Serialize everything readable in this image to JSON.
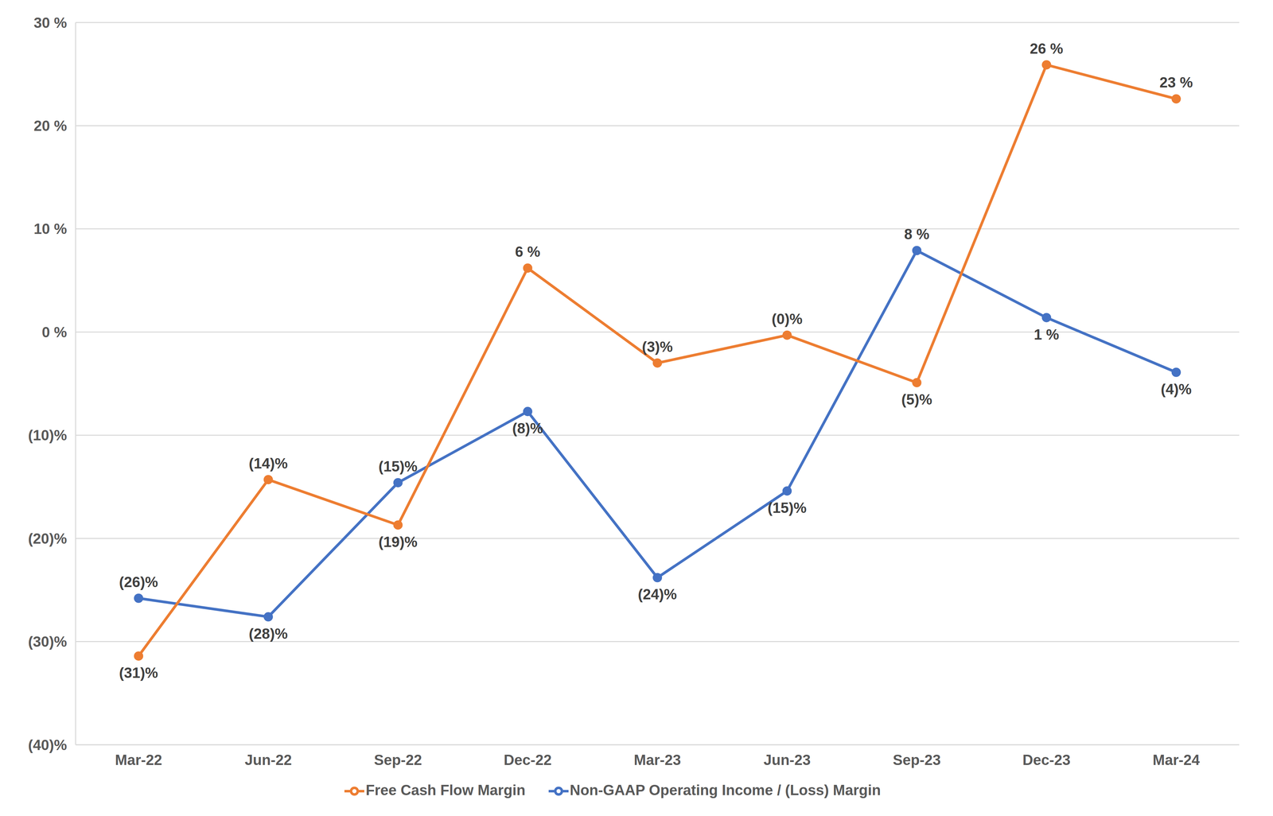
{
  "chart_data": {
    "type": "line",
    "categories": [
      "Mar-22",
      "Jun-22",
      "Sep-22",
      "Dec-22",
      "Mar-23",
      "Jun-23",
      "Sep-23",
      "Dec-23",
      "Mar-24"
    ],
    "series": [
      {
        "name": "Non-GAAP Operating Income / (Loss) Margin",
        "color": "#4472C4",
        "marker": "circle",
        "values": [
          -25.8,
          -27.6,
          -14.6,
          -7.7,
          -23.8,
          -15.4,
          7.9,
          1.4,
          -3.9
        ],
        "value_labels": [
          "(26)%",
          "(28)%",
          "(15)%",
          "(8)%",
          "(24)%",
          "(15)%",
          "8 %",
          "1 %",
          "(4)%"
        ]
      },
      {
        "name": "Free Cash Flow Margin",
        "color": "#ED7D31",
        "marker": "circle",
        "values": [
          -31.4,
          -14.3,
          -18.7,
          6.2,
          -3.0,
          -0.3,
          -4.9,
          25.9,
          22.6
        ],
        "value_labels": [
          "(31)%",
          "(14)%",
          "(19)%",
          "6 %",
          "(3)%",
          "(0)%",
          "(5)%",
          "26 %",
          "23 %"
        ]
      }
    ],
    "ylim": [
      -40,
      30
    ],
    "yticks": [
      {
        "value": -40,
        "label": "(40)%"
      },
      {
        "value": -30,
        "label": "(30)%"
      },
      {
        "value": -20,
        "label": "(20)%"
      },
      {
        "value": -10,
        "label": "(10)%"
      },
      {
        "value": 0,
        "label": "0 %"
      },
      {
        "value": 10,
        "label": "10 %"
      },
      {
        "value": 20,
        "label": "20 %"
      },
      {
        "value": 30,
        "label": "30 %"
      }
    ],
    "grid": true,
    "legend": "bottom",
    "data_labels": true
  }
}
